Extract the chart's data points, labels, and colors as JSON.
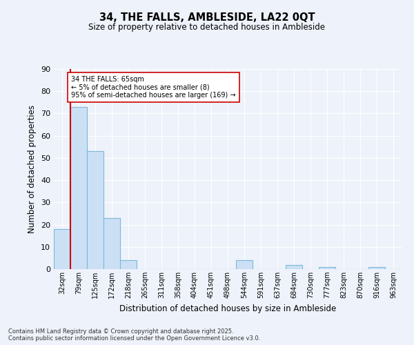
{
  "title_line1": "34, THE FALLS, AMBLESIDE, LA22 0QT",
  "title_line2": "Size of property relative to detached houses in Ambleside",
  "xlabel": "Distribution of detached houses by size in Ambleside",
  "ylabel": "Number of detached properties",
  "categories": [
    "32sqm",
    "79sqm",
    "125sqm",
    "172sqm",
    "218sqm",
    "265sqm",
    "311sqm",
    "358sqm",
    "404sqm",
    "451sqm",
    "498sqm",
    "544sqm",
    "591sqm",
    "637sqm",
    "684sqm",
    "730sqm",
    "777sqm",
    "823sqm",
    "870sqm",
    "916sqm",
    "963sqm"
  ],
  "values": [
    18,
    73,
    53,
    23,
    4,
    0,
    0,
    0,
    0,
    0,
    0,
    4,
    0,
    0,
    2,
    0,
    1,
    0,
    0,
    1,
    0
  ],
  "bar_color": "#cce0f5",
  "bar_edge_color": "#7ab8d9",
  "background_color": "#eef2fa",
  "grid_color": "#ffffff",
  "red_line_index": 1,
  "annotation_text": "34 THE FALLS: 65sqm\n← 5% of detached houses are smaller (8)\n95% of semi-detached houses are larger (169) →",
  "annotation_box_color": "#ffffff",
  "annotation_box_edge": "#cc0000",
  "annotation_text_color": "#000000",
  "red_line_color": "#cc0000",
  "ylim": [
    0,
    90
  ],
  "yticks": [
    0,
    10,
    20,
    30,
    40,
    50,
    60,
    70,
    80,
    90
  ],
  "footer_line1": "Contains HM Land Registry data © Crown copyright and database right 2025.",
  "footer_line2": "Contains public sector information licensed under the Open Government Licence v3.0."
}
